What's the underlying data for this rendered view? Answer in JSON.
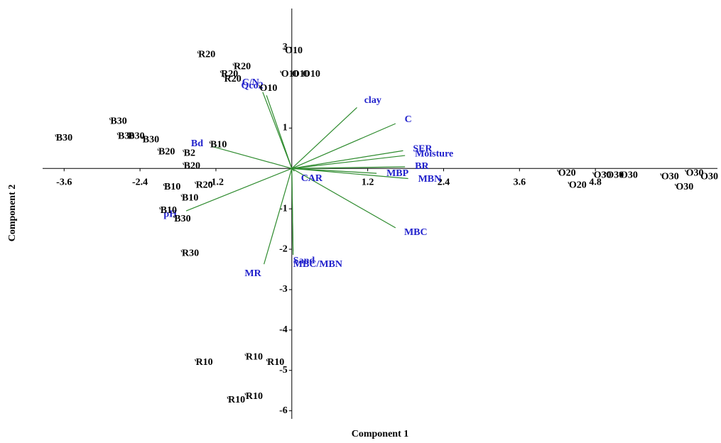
{
  "chart_data": {
    "type": "biplot",
    "x_label": "Component 1",
    "y_label": "Component 2",
    "xlim": [
      -3.94,
      6.73
    ],
    "ylim": [
      -6.2,
      3.96
    ],
    "xticks": [
      -3.6,
      -2.4,
      -1.2,
      1.2,
      2.4,
      3.6,
      4.8
    ],
    "yticks": [
      -6,
      -5,
      -4,
      -3,
      -2,
      -1,
      1,
      3
    ],
    "loadings": {
      "color": "#2e8b2e",
      "label_color": "#2222cc",
      "labels": [
        "clay",
        "C",
        "SER",
        "Moisture",
        "BR",
        "MBN",
        "MBP",
        "MBC",
        "CAR",
        "MBC/MBN",
        "Sand",
        "MR",
        "pH",
        "Bd",
        "C/N",
        "Qco2"
      ],
      "x": [
        1.03,
        1.64,
        1.76,
        1.79,
        1.79,
        1.84,
        1.34,
        1.64,
        0.04,
        0.02,
        0.02,
        -0.44,
        -1.67,
        -1.25,
        -0.46,
        -0.4
      ],
      "y": [
        1.51,
        1.11,
        0.44,
        0.32,
        0.04,
        -0.25,
        -0.12,
        -1.47,
        -0.07,
        -2.14,
        -2.05,
        -2.37,
        -1.05,
        0.54,
        1.89,
        1.81
      ]
    },
    "scores": {
      "color": "#000000",
      "labels": [
        "R20",
        "R20",
        "R20",
        "R20",
        "O10",
        "O10",
        "O10",
        "O10",
        "O10",
        "B30",
        "B30",
        "B30",
        "B30",
        "B30",
        "B20",
        "B2",
        "B20",
        "B10",
        "B10",
        "B10",
        "R20",
        "B10",
        "B30",
        "R30",
        "R10",
        "R10",
        "R10",
        "R10",
        "R10",
        "O20",
        "O20",
        "O30",
        "O30",
        "O30",
        "O30",
        "O30",
        "O30",
        "O30"
      ],
      "x": [
        -1.49,
        -0.93,
        -1.13,
        -1.08,
        -0.12,
        -0.18,
        -0.01,
        0.16,
        -0.52,
        -2.88,
        -3.74,
        -2.76,
        -2.6,
        -2.37,
        -2.12,
        -1.72,
        -1.72,
        -1.3,
        -2.03,
        -1.75,
        -1.53,
        -2.09,
        -1.87,
        -1.75,
        -1.53,
        -0.74,
        -0.4,
        -1.02,
        -0.74,
        4.2,
        4.37,
        4.76,
        4.96,
        5.18,
        5.83,
        6.22,
        6.45,
        6.06
      ],
      "y": [
        2.81,
        2.51,
        2.33,
        2.21,
        2.91,
        2.33,
        2.33,
        2.33,
        1.98,
        1.16,
        0.75,
        0.79,
        0.79,
        0.7,
        0.4,
        0.37,
        0.05,
        0.58,
        -0.47,
        -0.74,
        -0.42,
        -1.05,
        -1.26,
        -2.11,
        -4.81,
        -4.68,
        -4.81,
        -5.74,
        -5.65,
        -0.12,
        -0.42,
        -0.18,
        -0.18,
        -0.18,
        -0.21,
        -0.12,
        -0.21,
        -0.47
      ]
    }
  }
}
